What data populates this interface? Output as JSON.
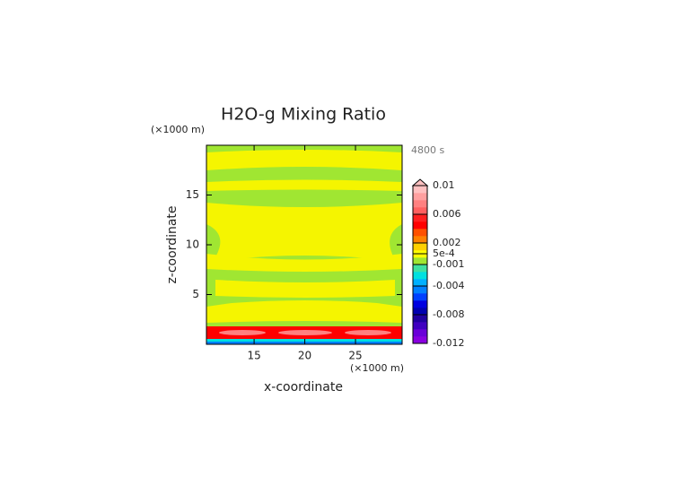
{
  "chart_data": {
    "type": "contour",
    "title": "H2O-g Mixing Ratio",
    "xlabel": "x-coordinate",
    "ylabel": "z-coordinate",
    "x_unit": "(×1000 m)",
    "y_unit": "(×1000 m)",
    "time": "4800 s",
    "xlim": [
      10.3,
      29.6
    ],
    "ylim": [
      0,
      20
    ],
    "xticks": [
      15,
      20,
      25
    ],
    "yticks": [
      5,
      10,
      15
    ],
    "colorbar": {
      "lim": [
        -0.012,
        0.01
      ],
      "ticks": [
        0.01,
        0.006,
        0.002,
        {
          "value": 0.0005,
          "label": "5e-4"
        },
        -0.001,
        -0.004,
        -0.008,
        -0.012
      ],
      "colors": [
        "#8a00e0",
        "#6a00d8",
        "#4000c0",
        "#2000a0",
        "#0000b0",
        "#0000e0",
        "#0040ff",
        "#0080ff",
        "#00b0ff",
        "#00e0e0",
        "#40e0a0",
        "#a0e632",
        "#ffff00",
        "#ffd000",
        "#ff8000",
        "#ff5000",
        "#ff0000",
        "#ff2020",
        "#ff6060",
        "#ff8080",
        "#ffa0a0",
        "#ffc0c0"
      ]
    }
  }
}
